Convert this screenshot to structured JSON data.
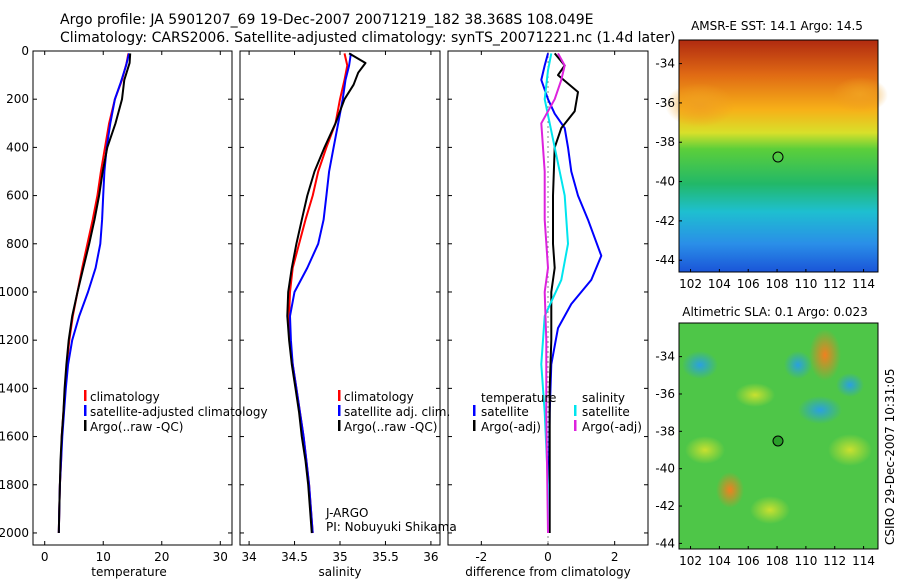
{
  "header": {
    "line1": "Argo profile: JA 5901207_69 19-Dec-2007 20071219_182 38.368S 108.049E",
    "line2": "Climatology: CARS2006. Satellite-adjusted climatology: synTS_20071221.nc (1.4d later)"
  },
  "side_stamp": "CSIRO 29-Dec-2007 10:31:05",
  "colors": {
    "climatology": "#ff0000",
    "satellite": "#0000ff",
    "argo": "#000000",
    "sal_sat": "#00e5ee",
    "sal_argo": "#dd22dd"
  },
  "chart_data": [
    {
      "type": "line",
      "xlabel": "temperature",
      "ylabel": "",
      "xlim": [
        -2,
        32
      ],
      "ylim": [
        0,
        2050
      ],
      "y_inverted": true,
      "xticks": [
        "0",
        "10",
        "20",
        "30"
      ],
      "yticks": [
        "0",
        "200",
        "400",
        "600",
        "800",
        "1000",
        "1200",
        "1400",
        "1600",
        "1800",
        "2000"
      ],
      "legend": {
        "placement": "bottom-right",
        "entries": [
          "climatology",
          "satellite-adjusted climatology",
          "Argo(..raw -QC)"
        ]
      },
      "series": [
        {
          "name": "climatology",
          "color": "#ff0000",
          "points": [
            [
              14.3,
              10
            ],
            [
              14.0,
              50
            ],
            [
              13.2,
              120
            ],
            [
              12.0,
              200
            ],
            [
              11.0,
              300
            ],
            [
              10.3,
              400
            ],
            [
              9.6,
              500
            ],
            [
              9.0,
              600
            ],
            [
              8.2,
              700
            ],
            [
              7.3,
              800
            ],
            [
              6.4,
              900
            ],
            [
              5.6,
              1000
            ],
            [
              4.8,
              1100
            ],
            [
              4.2,
              1200
            ],
            [
              3.8,
              1300
            ],
            [
              3.5,
              1400
            ],
            [
              3.2,
              1500
            ],
            [
              2.9,
              1600
            ],
            [
              2.8,
              1700
            ],
            [
              2.6,
              1800
            ],
            [
              2.5,
              1900
            ],
            [
              2.4,
              2000
            ]
          ]
        },
        {
          "name": "satellite-adjusted climatology",
          "color": "#0000ff",
          "points": [
            [
              14.4,
              10
            ],
            [
              13.9,
              60
            ],
            [
              13.0,
              130
            ],
            [
              12.0,
              200
            ],
            [
              11.2,
              300
            ],
            [
              10.6,
              400
            ],
            [
              10.2,
              500
            ],
            [
              10.0,
              600
            ],
            [
              9.8,
              700
            ],
            [
              9.5,
              800
            ],
            [
              8.7,
              900
            ],
            [
              7.4,
              1000
            ],
            [
              5.9,
              1100
            ],
            [
              4.7,
              1200
            ],
            [
              4.0,
              1300
            ],
            [
              3.6,
              1400
            ],
            [
              3.3,
              1500
            ],
            [
              3.0,
              1600
            ],
            [
              2.8,
              1700
            ],
            [
              2.6,
              1800
            ],
            [
              2.5,
              1900
            ],
            [
              2.4,
              2000
            ]
          ]
        },
        {
          "name": "Argo(..raw -QC)",
          "color": "#000000",
          "points": [
            [
              14.6,
              10
            ],
            [
              14.5,
              50
            ],
            [
              13.6,
              120
            ],
            [
              13.2,
              200
            ],
            [
              12.1,
              300
            ],
            [
              10.7,
              400
            ],
            [
              9.9,
              500
            ],
            [
              9.3,
              600
            ],
            [
              8.5,
              700
            ],
            [
              7.6,
              800
            ],
            [
              6.6,
              900
            ],
            [
              5.6,
              1000
            ],
            [
              4.7,
              1100
            ],
            [
              4.1,
              1200
            ],
            [
              3.7,
              1300
            ],
            [
              3.4,
              1400
            ],
            [
              3.2,
              1500
            ],
            [
              2.9,
              1600
            ],
            [
              2.7,
              1700
            ],
            [
              2.6,
              1800
            ],
            [
              2.5,
              1900
            ],
            [
              2.4,
              2000
            ]
          ]
        }
      ]
    },
    {
      "type": "line",
      "xlabel": "salinity",
      "ylabel": "",
      "xlim": [
        33.9,
        36.1
      ],
      "ylim": [
        0,
        2050
      ],
      "y_inverted": true,
      "xticks": [
        "34",
        "34.5",
        "35",
        "35.5",
        "36"
      ],
      "legend": {
        "placement": "bottom-right",
        "entries": [
          "climatology",
          "satellite adj. clim.",
          "Argo(..raw -QC)"
        ]
      },
      "annotation": [
        "J-ARGO",
        "PI: Nobuyuki Shikama"
      ],
      "series": [
        {
          "name": "climatology",
          "color": "#ff0000",
          "points": [
            [
              35.05,
              10
            ],
            [
              35.08,
              60
            ],
            [
              35.05,
              120
            ],
            [
              35.0,
              200
            ],
            [
              34.95,
              300
            ],
            [
              34.85,
              400
            ],
            [
              34.76,
              500
            ],
            [
              34.7,
              600
            ],
            [
              34.62,
              700
            ],
            [
              34.55,
              800
            ],
            [
              34.48,
              900
            ],
            [
              34.45,
              1000
            ],
            [
              34.44,
              1100
            ],
            [
              34.45,
              1200
            ],
            [
              34.48,
              1300
            ],
            [
              34.52,
              1400
            ],
            [
              34.56,
              1500
            ],
            [
              34.6,
              1600
            ],
            [
              34.63,
              1700
            ],
            [
              34.66,
              1800
            ],
            [
              34.68,
              1900
            ],
            [
              34.7,
              2000
            ]
          ]
        },
        {
          "name": "satellite adj. clim.",
          "color": "#0000ff",
          "points": [
            [
              35.12,
              10
            ],
            [
              35.1,
              60
            ],
            [
              35.06,
              120
            ],
            [
              35.03,
              200
            ],
            [
              34.98,
              300
            ],
            [
              34.93,
              400
            ],
            [
              34.88,
              500
            ],
            [
              34.85,
              600
            ],
            [
              34.82,
              700
            ],
            [
              34.76,
              800
            ],
            [
              34.64,
              900
            ],
            [
              34.5,
              1000
            ],
            [
              34.45,
              1100
            ],
            [
              34.46,
              1200
            ],
            [
              34.48,
              1300
            ],
            [
              34.52,
              1400
            ],
            [
              34.56,
              1500
            ],
            [
              34.6,
              1600
            ],
            [
              34.63,
              1700
            ],
            [
              34.66,
              1800
            ],
            [
              34.68,
              1900
            ],
            [
              34.7,
              2000
            ]
          ]
        },
        {
          "name": "Argo(..raw -QC)",
          "color": "#000000",
          "points": [
            [
              35.1,
              10
            ],
            [
              35.28,
              50
            ],
            [
              35.2,
              90
            ],
            [
              35.15,
              140
            ],
            [
              35.05,
              200
            ],
            [
              34.95,
              300
            ],
            [
              34.83,
              400
            ],
            [
              34.72,
              500
            ],
            [
              34.64,
              600
            ],
            [
              34.58,
              700
            ],
            [
              34.52,
              800
            ],
            [
              34.47,
              900
            ],
            [
              34.43,
              1000
            ],
            [
              34.42,
              1100
            ],
            [
              34.44,
              1200
            ],
            [
              34.47,
              1300
            ],
            [
              34.51,
              1400
            ],
            [
              34.55,
              1500
            ],
            [
              34.58,
              1600
            ],
            [
              34.62,
              1700
            ],
            [
              34.65,
              1800
            ],
            [
              34.67,
              1900
            ],
            [
              34.69,
              2000
            ]
          ]
        }
      ]
    },
    {
      "type": "line",
      "xlabel": "difference from climatology",
      "ylabel": "",
      "xlim": [
        -3,
        3
      ],
      "ylim": [
        0,
        2050
      ],
      "y_inverted": true,
      "xticks": [
        "-2",
        "0",
        "2"
      ],
      "legend": {
        "placement": "bottom",
        "groups": [
          {
            "title": "temperature",
            "entries": [
              "satellite",
              "Argo(-adj)"
            ]
          },
          {
            "title": "salinity",
            "entries": [
              "satellite",
              "Argo(-adj)"
            ]
          }
        ]
      },
      "series": [
        {
          "name": "temperature satellite",
          "color": "#0000ff",
          "points": [
            [
              0.0,
              10
            ],
            [
              -0.1,
              60
            ],
            [
              -0.2,
              120
            ],
            [
              0.0,
              200
            ],
            [
              0.2,
              260
            ],
            [
              0.5,
              320
            ],
            [
              0.6,
              400
            ],
            [
              0.7,
              500
            ],
            [
              0.9,
              600
            ],
            [
              1.2,
              700
            ],
            [
              1.6,
              850
            ],
            [
              1.3,
              950
            ],
            [
              0.7,
              1050
            ],
            [
              0.3,
              1150
            ],
            [
              0.1,
              1300
            ],
            [
              0.05,
              1500
            ],
            [
              0.0,
              2000
            ]
          ]
        },
        {
          "name": "temperature Argo(-adj)",
          "color": "#000000",
          "points": [
            [
              0.2,
              10
            ],
            [
              0.5,
              60
            ],
            [
              0.3,
              100
            ],
            [
              0.9,
              170
            ],
            [
              0.8,
              250
            ],
            [
              0.4,
              320
            ],
            [
              0.2,
              400
            ],
            [
              0.15,
              600
            ],
            [
              0.15,
              800
            ],
            [
              0.2,
              900
            ],
            [
              0.1,
              1000
            ],
            [
              0.1,
              1200
            ],
            [
              0.05,
              1400
            ],
            [
              0.05,
              1600
            ],
            [
              0.05,
              1800
            ],
            [
              0.05,
              2000
            ]
          ]
        },
        {
          "name": "salinity satellite",
          "color": "#00e5ee",
          "points": [
            [
              0.1,
              10
            ],
            [
              0.0,
              80
            ],
            [
              -0.1,
              200
            ],
            [
              0.2,
              400
            ],
            [
              0.5,
              600
            ],
            [
              0.6,
              800
            ],
            [
              0.4,
              950
            ],
            [
              -0.1,
              1100
            ],
            [
              -0.2,
              1300
            ],
            [
              -0.1,
              1500
            ],
            [
              0.0,
              1800
            ],
            [
              0.0,
              2000
            ]
          ]
        },
        {
          "name": "salinity Argo(-adj)",
          "color": "#dd22dd",
          "points": [
            [
              0.3,
              10
            ],
            [
              0.5,
              60
            ],
            [
              0.4,
              120
            ],
            [
              0.2,
              200
            ],
            [
              -0.2,
              300
            ],
            [
              -0.1,
              500
            ],
            [
              -0.1,
              700
            ],
            [
              0.0,
              900
            ],
            [
              -0.1,
              1000
            ],
            [
              -0.05,
              1200
            ],
            [
              -0.05,
              1500
            ],
            [
              0.0,
              2000
            ]
          ]
        }
      ]
    },
    {
      "type": "heatmap",
      "title": "AMSR-E SST: 14.1 Argo: 14.5",
      "xticks": [
        "102",
        "104",
        "106",
        "108",
        "110",
        "112",
        "114"
      ],
      "yticks": [
        "-34",
        "-36",
        "-38",
        "-40",
        "-42",
        "-44"
      ],
      "marker": {
        "lon": 108.049,
        "lat": -38.368
      }
    },
    {
      "type": "heatmap",
      "title": "Altimetric SLA: 0.1 Argo: 0.023",
      "xticks": [
        "102",
        "104",
        "106",
        "108",
        "110",
        "112",
        "114"
      ],
      "yticks": [
        "-34",
        "-36",
        "-38",
        "-40",
        "-42",
        "-44"
      ],
      "marker": {
        "lon": 108.049,
        "lat": -38.368
      }
    }
  ]
}
